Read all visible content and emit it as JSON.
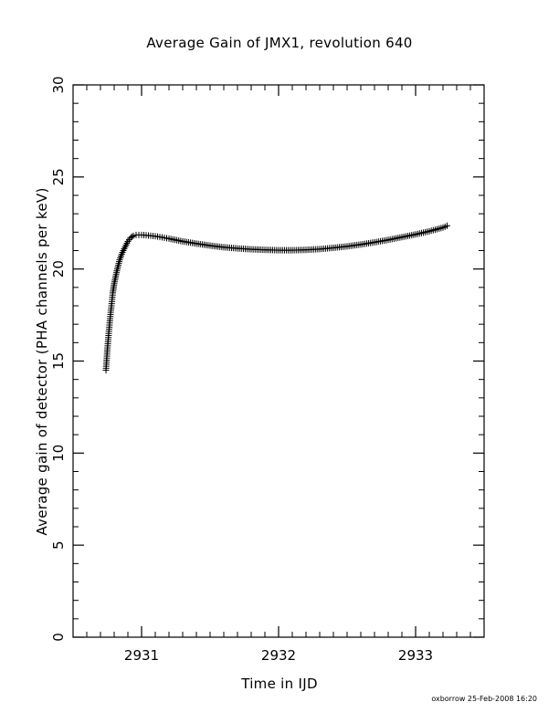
{
  "chart_data": {
    "type": "scatter",
    "title": "Average Gain of JMX1, revolution 640",
    "xlabel": "Time in IJD",
    "ylabel": "Average gain of detector (PHA channels per keV)",
    "xlim": [
      2930.5,
      2933.5
    ],
    "ylim": [
      0,
      30
    ],
    "xticks": [
      2931,
      2932,
      2933
    ],
    "xtick_labels": [
      "2931",
      "2932",
      "2933"
    ],
    "yticks": [
      0,
      5,
      10,
      15,
      20,
      25,
      30
    ],
    "ytick_labels": [
      "0",
      "5",
      "10",
      "15",
      "20",
      "25",
      "30"
    ],
    "x_minor_step": 0.1,
    "y_minor_step": 1,
    "grid": false,
    "marker": "+",
    "series": [
      {
        "x": [
          2930.74,
          2930.75,
          2930.76,
          2930.77,
          2930.78,
          2930.79,
          2930.8,
          2930.82,
          2930.84,
          2930.86,
          2930.88,
          2930.9,
          2930.92,
          2930.94,
          2930.96,
          2930.98,
          2931.0,
          2931.05,
          2931.1,
          2931.15,
          2931.2,
          2931.3,
          2931.4,
          2931.5,
          2931.6,
          2931.7,
          2931.8,
          2931.9,
          2932.0,
          2932.1,
          2932.2,
          2932.3,
          2932.4,
          2932.5,
          2932.6,
          2932.7,
          2932.8,
          2932.9,
          2933.0,
          2933.1,
          2933.2,
          2933.23
        ],
        "y": [
          14.5,
          15.6,
          16.5,
          17.3,
          18.0,
          18.7,
          19.2,
          19.9,
          20.5,
          20.9,
          21.2,
          21.5,
          21.7,
          21.8,
          21.85,
          21.85,
          21.85,
          21.82,
          21.78,
          21.72,
          21.65,
          21.5,
          21.38,
          21.27,
          21.18,
          21.12,
          21.07,
          21.04,
          21.02,
          21.02,
          21.04,
          21.08,
          21.15,
          21.23,
          21.33,
          21.45,
          21.58,
          21.73,
          21.88,
          22.05,
          22.25,
          22.35
        ]
      }
    ]
  },
  "footer": "oxborrow 25-Feb-2008 16:20"
}
